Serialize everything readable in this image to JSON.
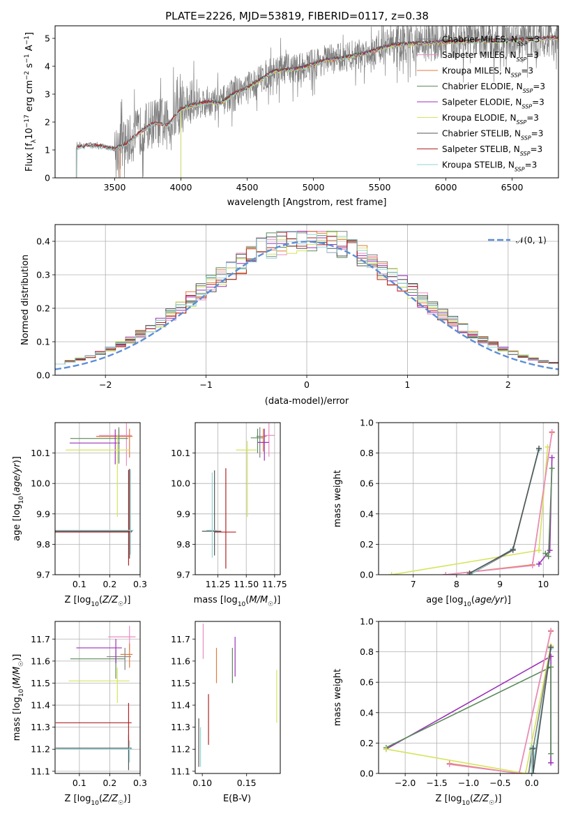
{
  "figure_title": "PLATE=2226, MJD=53819, FIBERID=0117, z=0.38",
  "colors": {
    "chabrier_miles": "#808080",
    "salpeter_miles": "#e98cc0",
    "kroupa_miles": "#e07a3a",
    "chabrier_elodie": "#5a8a5a",
    "salpeter_elodie": "#9b30b8",
    "kroupa_elodie": "#d4e45a",
    "chabrier_stelib": "#555555",
    "salpeter_stelib": "#b22222",
    "kroupa_stelib": "#8fd3d3",
    "normal": "#5b8ed6",
    "data": "#7f7f7f"
  },
  "chart_data": [
    {
      "type": "line",
      "id": "spectrum",
      "xlabel": "wavelength [Angstrom, rest frame]",
      "ylabel": "Flux [f",
      "ylabel_parts": [
        "Flux [f",
        "λ",
        "10",
        "−17",
        " erg cm",
        "−2",
        " s",
        "−1",
        " A",
        "−1",
        "]"
      ],
      "xlim": [
        3050,
        6850
      ],
      "ylim": [
        0,
        5.45
      ],
      "xticks": [
        3500,
        4000,
        4500,
        5000,
        5500,
        6000,
        6500
      ],
      "yticks": [
        0,
        1,
        2,
        3,
        4,
        5
      ],
      "grid": false,
      "legend_position": "upper right",
      "legend": [
        "Chabrier MILES, N_SSP=3",
        "Salpeter MILES, N_SSP=3",
        "Kroupa MILES, N_SSP=3",
        "Chabrier ELODIE, N_SSP=3",
        "Salpeter ELODIE, N_SSP=3",
        "Kroupa ELODIE, N_SSP=3",
        "Chabrier STELIB, N_SSP=3",
        "Salpeter STELIB, N_SSP=3",
        "Kroupa STELIB, N_SSP=3"
      ],
      "continuum": {
        "x": [
          3200,
          3300,
          3400,
          3500,
          3600,
          3700,
          3800,
          3900,
          4000,
          4100,
          4200,
          4300,
          4400,
          4500,
          4600,
          4700,
          4800,
          4900,
          5000,
          5100,
          5200,
          5300,
          5400,
          5500,
          5600,
          5700,
          5800,
          5900,
          6000,
          6100,
          6200,
          6300,
          6400,
          6500,
          6600,
          6700,
          6800
        ],
        "y": [
          1.1,
          1.2,
          1.15,
          1.05,
          1.3,
          1.7,
          2.0,
          1.9,
          2.5,
          2.65,
          2.75,
          2.7,
          3.05,
          3.25,
          3.55,
          3.85,
          3.9,
          3.95,
          4.1,
          4.25,
          4.3,
          4.4,
          4.5,
          4.65,
          4.8,
          4.82,
          4.85,
          4.88,
          4.9,
          4.92,
          4.92,
          4.95,
          4.95,
          4.96,
          5.0,
          5.02,
          5.05
        ]
      },
      "model_starts": {
        "miles": 3540,
        "elodie": 4000,
        "stelib": 3210
      }
    },
    {
      "type": "histogram",
      "id": "residuals",
      "xlabel": "(data-model)/error",
      "ylabel": "Normed distribution",
      "xlim": [
        -2.5,
        2.5
      ],
      "ylim": [
        0,
        0.45
      ],
      "xticks": [
        -2,
        -1,
        0,
        1,
        2
      ],
      "yticks": [
        0.0,
        0.1,
        0.2,
        0.3,
        0.4
      ],
      "grid": true,
      "bin_width": 0.1,
      "legend": [
        "𝒩(0, 1)"
      ],
      "legend_position": "upper right"
    },
    {
      "type": "scatter",
      "id": "age_vs_z",
      "xlabel": "Z [log10(Z/Z☉)]",
      "ylabel": "age [log10(age/yr)]",
      "xlim": [
        0.02,
        0.3
      ],
      "ylim": [
        9.7,
        10.2
      ],
      "xticks": [
        0.1,
        0.2,
        0.3
      ],
      "yticks": [
        9.7,
        9.8,
        9.9,
        10.0,
        10.1
      ],
      "grid": true,
      "errorbars": [
        {
          "c": "chabrier_miles",
          "x": 0.23,
          "xerr": [
            0.07,
            0.04
          ],
          "y": 10.155,
          "yerr": [
            0.09,
            0.03
          ]
        },
        {
          "c": "salpeter_miles",
          "x": 0.255,
          "xerr": [
            0.09,
            0.018
          ],
          "y": 10.158,
          "yerr": [
            0.1,
            0.04
          ]
        },
        {
          "c": "kroupa_miles",
          "x": 0.265,
          "xerr": [
            0.11,
            0.01
          ],
          "y": 10.155,
          "yerr": [
            0.07,
            0.025
          ]
        },
        {
          "c": "chabrier_elodie",
          "x": 0.23,
          "xerr": [
            0.16,
            0.03
          ],
          "y": 10.148,
          "yerr": [
            0.08,
            0.03
          ]
        },
        {
          "c": "salpeter_elodie",
          "x": 0.218,
          "xerr": [
            0.15,
            0.015
          ],
          "y": 10.133,
          "yerr": [
            0.07,
            0.045
          ]
        },
        {
          "c": "kroupa_elodie",
          "x": 0.225,
          "xerr": [
            0.17,
            0.04
          ],
          "y": 10.11,
          "yerr": [
            0.22,
            0.05
          ]
        },
        {
          "c": "chabrier_stelib",
          "x": 0.265,
          "xerr": [
            0.25,
            0.01
          ],
          "y": 9.843,
          "yerr": [
            0.09,
            0.205
          ]
        },
        {
          "c": "salpeter_stelib",
          "x": 0.262,
          "xerr": [
            0.25,
            0.01
          ],
          "y": 9.84,
          "yerr": [
            0.11,
            0.205
          ]
        },
        {
          "c": "kroupa_stelib",
          "x": 0.268,
          "xerr": [
            0.25,
            0.01
          ],
          "y": 9.846,
          "yerr": [
            0.08,
            0.2
          ]
        }
      ]
    },
    {
      "type": "scatter",
      "id": "age_vs_mass",
      "xlabel": "mass [log10(M/M☉)]",
      "ylabel": "",
      "xlim": [
        11.05,
        11.8
      ],
      "ylim": [
        9.7,
        10.2
      ],
      "xticks": [
        11.25,
        11.5,
        11.75
      ],
      "yticks": [
        9.7,
        9.8,
        9.9,
        10.0,
        10.1
      ],
      "grid": true,
      "errorbars": [
        {
          "c": "chabrier_miles",
          "x": 11.62,
          "xerr": [
            0.03,
            0.03
          ],
          "y": 10.155,
          "yerr": [
            0.07,
            0.03
          ]
        },
        {
          "c": "salpeter_miles",
          "x": 11.7,
          "xerr": [
            0.04,
            0.05
          ],
          "y": 10.158,
          "yerr": [
            0.07,
            0.04
          ]
        },
        {
          "c": "kroupa_miles",
          "x": 11.65,
          "xerr": [
            0.02,
            0.03
          ],
          "y": 10.155,
          "yerr": [
            0.05,
            0.025
          ]
        },
        {
          "c": "chabrier_elodie",
          "x": 11.6,
          "xerr": [
            0.06,
            0.05
          ],
          "y": 10.15,
          "yerr": [
            0.05,
            0.03
          ]
        },
        {
          "c": "salpeter_elodie",
          "x": 11.66,
          "xerr": [
            0.06,
            0.04
          ],
          "y": 10.135,
          "yerr": [
            0.06,
            0.045
          ]
        },
        {
          "c": "kroupa_elodie",
          "x": 11.51,
          "xerr": [
            0.1,
            0.08
          ],
          "y": 10.11,
          "yerr": [
            0.22,
            0.03
          ]
        },
        {
          "c": "chabrier_stelib",
          "x": 11.22,
          "xerr": [
            0.11,
            0.06
          ],
          "y": 9.843,
          "yerr": [
            0.08,
            0.2
          ]
        },
        {
          "c": "salpeter_stelib",
          "x": 11.32,
          "xerr": [
            0.1,
            0.09
          ],
          "y": 9.84,
          "yerr": [
            0.12,
            0.21
          ]
        },
        {
          "c": "kroupa_stelib",
          "x": 11.2,
          "xerr": [
            0.05,
            0.04
          ],
          "y": 9.846,
          "yerr": [
            0.09,
            0.19
          ]
        }
      ]
    },
    {
      "type": "line",
      "id": "weight_vs_age",
      "xlabel": "age [log10(age/yr)]",
      "ylabel": "mass weight",
      "xlim": [
        6.2,
        10.35
      ],
      "ylim": [
        0,
        1.0
      ],
      "xticks": [
        7,
        8,
        9,
        10
      ],
      "yticks": [
        0.0,
        0.2,
        0.4,
        0.6,
        0.8,
        1.0
      ],
      "grid": true,
      "series": [
        {
          "c": "kroupa_elodie",
          "x": [
            6.5,
            9.9,
            10.1
          ],
          "y": [
            0.0,
            0.16,
            0.84
          ]
        },
        {
          "c": "kroupa_miles",
          "x": [
            7.75,
            9.75,
            10.2
          ],
          "y": [
            0.0,
            0.065,
            0.935
          ]
        },
        {
          "c": "salpeter_miles",
          "x": [
            7.75,
            9.75,
            10.2
          ],
          "y": [
            0.0,
            0.06,
            0.94
          ]
        },
        {
          "c": "chabrier_miles",
          "x": [
            8.3,
            9.3,
            9.9
          ],
          "y": [
            0.0,
            0.16,
            0.83
          ]
        },
        {
          "c": "kroupa_stelib",
          "x": [
            8.3,
            9.3,
            9.9
          ],
          "y": [
            0.0,
            0.17,
            0.82
          ]
        },
        {
          "c": "chabrier_stelib",
          "x": [
            8.3,
            9.3,
            9.9
          ],
          "y": [
            0.01,
            0.165,
            0.83
          ]
        },
        {
          "c": "salpeter_elodie",
          "x": [
            9.9,
            10.15,
            10.2
          ],
          "y": [
            0.07,
            0.16,
            0.77
          ]
        },
        {
          "c": "chabrier_elodie",
          "x": [
            10.05,
            10.12,
            10.2
          ],
          "y": [
            0.14,
            0.12,
            0.7
          ]
        }
      ]
    },
    {
      "type": "scatter",
      "id": "mass_vs_z",
      "xlabel": "Z [log10(Z/Z☉)]",
      "ylabel": "mass [log10(M/M☉)]",
      "xlim": [
        0.02,
        0.3
      ],
      "ylim": [
        11.09,
        11.78
      ],
      "xticks": [
        0.1,
        0.2,
        0.3
      ],
      "yticks": [
        11.1,
        11.2,
        11.3,
        11.4,
        11.5,
        11.6,
        11.7
      ],
      "grid": true,
      "errorbars": [
        {
          "c": "chabrier_miles",
          "x": 0.25,
          "xerr": [
            0.06,
            0.02
          ],
          "y": 11.62,
          "yerr": [
            0.06,
            0.04
          ]
        },
        {
          "c": "salpeter_miles",
          "x": 0.265,
          "xerr": [
            0.07,
            0.02
          ],
          "y": 11.71,
          "yerr": [
            0.06,
            0.05
          ]
        },
        {
          "c": "kroupa_miles",
          "x": 0.265,
          "xerr": [
            0.03,
            0.01
          ],
          "y": 11.63,
          "yerr": [
            0.06,
            0.05
          ]
        },
        {
          "c": "chabrier_elodie",
          "x": 0.22,
          "xerr": [
            0.15,
            0.03
          ],
          "y": 11.61,
          "yerr": [
            0.09,
            0.04
          ]
        },
        {
          "c": "salpeter_elodie",
          "x": 0.22,
          "xerr": [
            0.13,
            0.02
          ],
          "y": 11.66,
          "yerr": [
            0.07,
            0.04
          ]
        },
        {
          "c": "kroupa_elodie",
          "x": 0.225,
          "xerr": [
            0.16,
            0.04
          ],
          "y": 11.51,
          "yerr": [
            0.1,
            0.06
          ]
        },
        {
          "c": "chabrier_stelib",
          "x": 0.262,
          "xerr": [
            0.24,
            0.01
          ],
          "y": 11.205,
          "yerr": [
            0.1,
            0.06
          ]
        },
        {
          "c": "salpeter_stelib",
          "x": 0.262,
          "xerr": [
            0.24,
            0.01
          ],
          "y": 11.32,
          "yerr": [
            0.11,
            0.09
          ]
        },
        {
          "c": "kroupa_stelib",
          "x": 0.265,
          "xerr": [
            0.24,
            0.01
          ],
          "y": 11.2,
          "yerr": [
            0.06,
            0.04
          ]
        }
      ]
    },
    {
      "type": "scatter",
      "id": "mass_vs_ebv",
      "xlabel": "E(B-V)",
      "ylabel": "",
      "xlim": [
        0.092,
        0.188
      ],
      "ylim": [
        11.09,
        11.78
      ],
      "xticks": [
        0.1,
        0.15
      ],
      "yticks": [
        11.1,
        11.2,
        11.3,
        11.4,
        11.5,
        11.6,
        11.7
      ],
      "grid": false,
      "errorbars": [
        {
          "c": "chabrier_stelib",
          "x": 0.096,
          "y": 11.23,
          "yerr": [
            0.11,
            0.11
          ]
        },
        {
          "c": "kroupa_stelib",
          "x": 0.098,
          "y": 11.21,
          "yerr": [
            0.09,
            0.09
          ]
        },
        {
          "c": "salpeter_miles",
          "x": 0.101,
          "y": 11.67,
          "yerr": [
            0.06,
            0.1
          ]
        },
        {
          "c": "salpeter_stelib",
          "x": 0.107,
          "y": 11.33,
          "yerr": [
            0.11,
            0.12
          ]
        },
        {
          "c": "kroupa_miles",
          "x": 0.116,
          "y": 11.58,
          "yerr": [
            0.08,
            0.08
          ]
        },
        {
          "c": "chabrier_elodie",
          "x": 0.134,
          "y": 11.58,
          "yerr": [
            0.08,
            0.08
          ]
        },
        {
          "c": "salpeter_elodie",
          "x": 0.137,
          "y": 11.62,
          "yerr": [
            0.09,
            0.09
          ]
        },
        {
          "c": "kroupa_elodie",
          "x": 0.184,
          "y": 11.44,
          "yerr": [
            0.12,
            0.12
          ]
        }
      ]
    },
    {
      "type": "line",
      "id": "weight_vs_z",
      "xlabel": "Z [log10(Z/Z☉)]",
      "ylabel": "mass weight",
      "xlim": [
        -2.42,
        0.42
      ],
      "ylim": [
        0,
        1.0
      ],
      "xticks": [
        -2.0,
        -1.5,
        -1.0,
        -0.5,
        0.0
      ],
      "yticks": [
        0.0,
        0.2,
        0.4,
        0.6,
        0.8,
        1.0
      ],
      "grid": true,
      "series": [
        {
          "c": "salpeter_elodie",
          "x": [
            -2.3,
            0.3,
            0.3
          ],
          "y": [
            0.16,
            0.77,
            0.07
          ]
        },
        {
          "c": "chabrier_elodie",
          "x": [
            -2.3,
            0.3,
            0.3
          ],
          "y": [
            0.17,
            0.7,
            0.13
          ]
        },
        {
          "c": "kroupa_elodie",
          "x": [
            -2.3,
            -0.1,
            0.3
          ],
          "y": [
            0.16,
            0.0,
            0.84
          ]
        },
        {
          "c": "kroupa_miles",
          "x": [
            -1.3,
            -0.2,
            0.3
          ],
          "y": [
            0.065,
            0.0,
            0.935
          ]
        },
        {
          "c": "salpeter_miles",
          "x": [
            -1.3,
            -0.2,
            0.3
          ],
          "y": [
            0.06,
            0.0,
            0.94
          ]
        },
        {
          "c": "chabrier_miles",
          "x": [
            0.0,
            -0.05,
            0.3
          ],
          "y": [
            0.16,
            0.0,
            0.83
          ]
        },
        {
          "c": "kroupa_stelib",
          "x": [
            0.0,
            0.0,
            0.3
          ],
          "y": [
            0.17,
            0.0,
            0.82
          ]
        },
        {
          "c": "chabrier_stelib",
          "x": [
            0.02,
            0.02,
            0.3
          ],
          "y": [
            0.165,
            0.0,
            0.83
          ]
        }
      ]
    }
  ]
}
